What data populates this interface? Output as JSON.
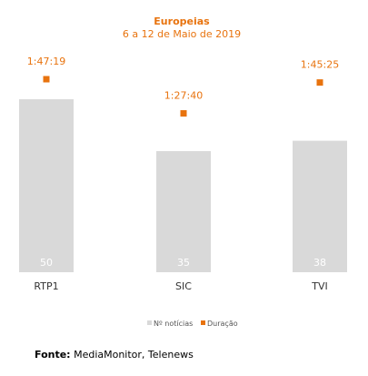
{
  "chart_data": {
    "type": "bar",
    "title": "Europeias",
    "subtitle": "6 a 12 de Maio de 2019",
    "categories": [
      "RTP1",
      "SIC",
      "TVI"
    ],
    "series": [
      {
        "name": "Nº notícias",
        "type": "bar",
        "values": [
          50,
          35,
          38
        ],
        "color": "#d9d9d9"
      },
      {
        "name": "Duração",
        "type": "scatter",
        "values": [
          "1:47:19",
          "1:27:40",
          "1:45:25"
        ],
        "seconds": [
          6439,
          5260,
          6325
        ],
        "color": "#e8730e"
      }
    ],
    "legend_position": "bottom-center",
    "grid": false
  },
  "source": {
    "label": "Fonte:",
    "text": "MediaMonitor, Telenews"
  }
}
